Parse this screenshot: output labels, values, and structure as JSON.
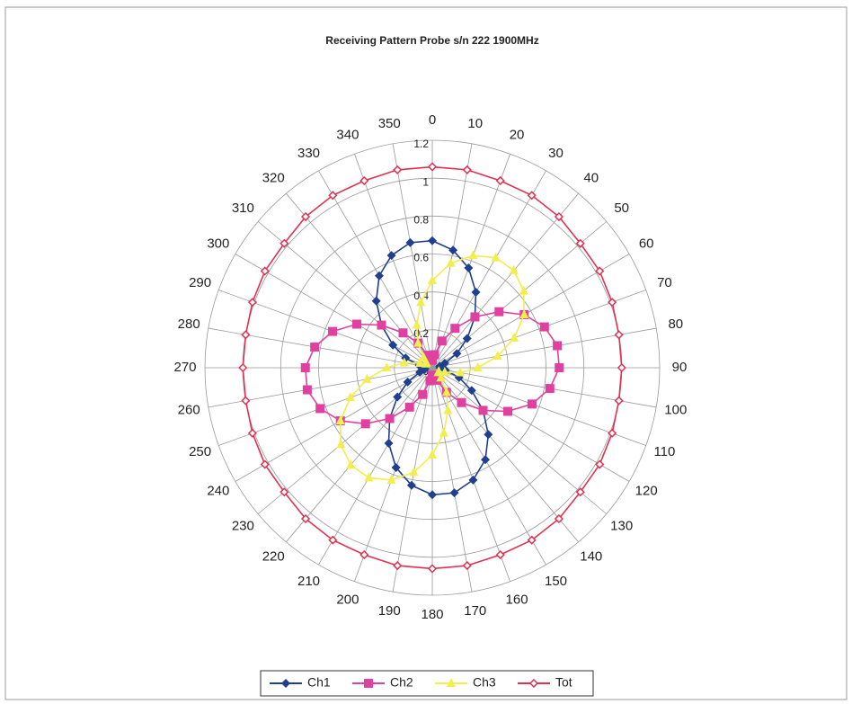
{
  "chart_data": {
    "type": "radar",
    "title": "Receiving Pattern Probe s/n 222 1900MHz",
    "categories": [
      0,
      10,
      20,
      30,
      40,
      50,
      60,
      70,
      80,
      90,
      100,
      110,
      120,
      130,
      140,
      150,
      160,
      170,
      180,
      190,
      200,
      210,
      220,
      230,
      240,
      250,
      260,
      270,
      280,
      290,
      300,
      310,
      320,
      330,
      340,
      350
    ],
    "ylim": [
      0,
      1.2
    ],
    "yticks": [
      0,
      0.2,
      0.4,
      0.6,
      0.8,
      1,
      1.2
    ],
    "grid": true,
    "legend": "bottom",
    "series": [
      {
        "name": "Ch1",
        "color": "#1f3f8f",
        "marker": "diamond",
        "values": [
          0.67,
          0.63,
          0.56,
          0.46,
          0.35,
          0.24,
          0.15,
          0.07,
          0.04,
          0.04,
          0.07,
          0.15,
          0.24,
          0.35,
          0.46,
          0.56,
          0.63,
          0.67,
          0.67,
          0.63,
          0.56,
          0.46,
          0.35,
          0.24,
          0.15,
          0.07,
          0.04,
          0.04,
          0.07,
          0.15,
          0.24,
          0.35,
          0.46,
          0.56,
          0.63,
          0.67
        ]
      },
      {
        "name": "Ch2",
        "color": "#e040a0",
        "marker": "square",
        "values": [
          0.04,
          0.07,
          0.15,
          0.24,
          0.35,
          0.46,
          0.56,
          0.63,
          0.67,
          0.67,
          0.63,
          0.56,
          0.46,
          0.35,
          0.24,
          0.15,
          0.07,
          0.04,
          0.04,
          0.07,
          0.15,
          0.24,
          0.35,
          0.46,
          0.56,
          0.63,
          0.67,
          0.67,
          0.63,
          0.56,
          0.46,
          0.35,
          0.24,
          0.15,
          0.07,
          0.04
        ]
      },
      {
        "name": "Ch3",
        "color": "#f2ee50",
        "marker": "triangle",
        "values": [
          0.46,
          0.56,
          0.63,
          0.67,
          0.67,
          0.63,
          0.56,
          0.46,
          0.35,
          0.24,
          0.15,
          0.07,
          0.04,
          0.04,
          0.07,
          0.15,
          0.24,
          0.35,
          0.46,
          0.56,
          0.63,
          0.67,
          0.67,
          0.63,
          0.56,
          0.46,
          0.35,
          0.24,
          0.15,
          0.07,
          0.04,
          0.04,
          0.07,
          0.15,
          0.24,
          0.35
        ]
      },
      {
        "name": "Tot",
        "color": "#e03050",
        "marker": "hollow-diamond",
        "values": [
          1.06,
          1.06,
          1.05,
          1.05,
          1.04,
          1.02,
          1.02,
          1.01,
          1.0,
          1.0,
          1.0,
          1.01,
          1.02,
          1.02,
          1.04,
          1.05,
          1.05,
          1.06,
          1.06,
          1.06,
          1.05,
          1.05,
          1.04,
          1.02,
          1.02,
          1.01,
          1.0,
          1.0,
          1.0,
          1.01,
          1.02,
          1.02,
          1.04,
          1.05,
          1.05,
          1.06
        ]
      }
    ]
  }
}
